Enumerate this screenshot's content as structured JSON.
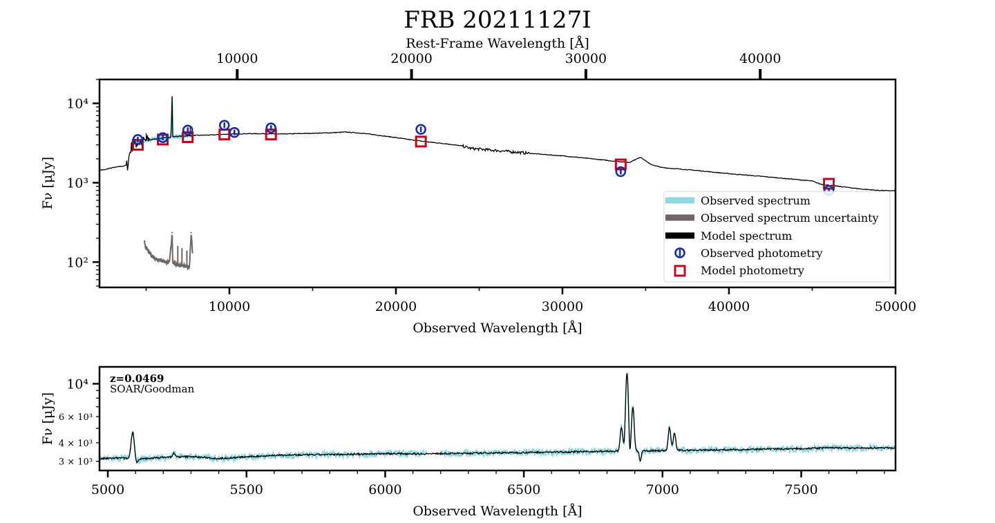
{
  "title": "FRB 20211127I",
  "colors": {
    "observed_spectrum": "#8dd8e0",
    "uncertainty": "#6e6664",
    "model": "#000000",
    "observed_phot": "#1a2ea0",
    "model_phot": "#c4001a"
  },
  "chart_data": [
    {
      "type": "line",
      "panel": "sed",
      "title": "FRB 20211127I",
      "xlabel": "Observed Wavelength [Å]",
      "ylabel": "Fν [μJy]",
      "top_xlabel": "Rest-Frame Wavelength [Å]",
      "xlim": [
        2200,
        50000
      ],
      "ylim": [
        48,
        20000
      ],
      "yscale": "log",
      "xticks": [
        10000,
        20000,
        30000,
        40000,
        50000
      ],
      "xtick_labels": [
        "10000",
        "20000",
        "30000",
        "40000",
        "50000"
      ],
      "top_xticks": [
        10000,
        20000,
        30000,
        40000
      ],
      "top_xtick_labels": [
        "10000",
        "20000",
        "30000",
        "40000"
      ],
      "yticks": [
        100,
        1000,
        10000
      ],
      "ytick_labels": [
        "10²",
        "10³",
        "10⁴"
      ],
      "legend": {
        "location": "lower-right",
        "entries": [
          "Observed spectrum",
          "Observed spectrum uncertainty",
          "Model spectrum",
          "Observed photometry",
          "Model photometry"
        ]
      },
      "model_spectrum": [
        [
          2200,
          1450
        ],
        [
          2500,
          1450
        ],
        [
          2800,
          1520
        ],
        [
          3100,
          1560
        ],
        [
          3400,
          1600
        ],
        [
          3700,
          1630
        ],
        [
          3900,
          1700
        ],
        [
          4000,
          2300
        ],
        [
          4100,
          2800
        ],
        [
          4200,
          3000
        ],
        [
          4300,
          3100
        ],
        [
          4500,
          3200
        ],
        [
          4700,
          3300
        ],
        [
          5000,
          3400
        ],
        [
          5500,
          3550
        ],
        [
          6000,
          3650
        ],
        [
          6500,
          3750
        ],
        [
          6563,
          13000
        ],
        [
          6600,
          3800
        ],
        [
          7000,
          3850
        ],
        [
          7500,
          3900
        ],
        [
          8000,
          3950
        ],
        [
          9000,
          4000
        ],
        [
          10000,
          4100
        ],
        [
          11000,
          4150
        ],
        [
          12000,
          4150
        ],
        [
          13000,
          4100
        ],
        [
          14000,
          4150
        ],
        [
          15000,
          4200
        ],
        [
          16000,
          4250
        ],
        [
          17000,
          4350
        ],
        [
          18000,
          4200
        ],
        [
          19000,
          3950
        ],
        [
          20000,
          3700
        ],
        [
          21000,
          3450
        ],
        [
          22000,
          3250
        ],
        [
          23000,
          3100
        ],
        [
          24000,
          2900
        ],
        [
          24500,
          2700
        ],
        [
          25000,
          2650
        ],
        [
          26000,
          2550
        ],
        [
          27000,
          2450
        ],
        [
          28000,
          2350
        ],
        [
          29000,
          2260
        ],
        [
          30000,
          2180
        ],
        [
          31000,
          2080
        ],
        [
          32000,
          1980
        ],
        [
          33000,
          1880
        ],
        [
          34000,
          1800
        ],
        [
          34700,
          2100
        ],
        [
          35300,
          1700
        ],
        [
          36000,
          1550
        ],
        [
          38000,
          1430
        ],
        [
          40000,
          1300
        ],
        [
          42000,
          1200
        ],
        [
          44000,
          1100
        ],
        [
          45000,
          1050
        ],
        [
          45500,
          960
        ],
        [
          46000,
          930
        ],
        [
          47000,
          880
        ],
        [
          48000,
          830
        ],
        [
          49000,
          800
        ],
        [
          50000,
          790
        ]
      ],
      "observed_spectrum_x_range": [
        4200,
        7800
      ],
      "uncertainty_spectrum": [
        [
          4900,
          180
        ],
        [
          5000,
          150
        ],
        [
          5200,
          130
        ],
        [
          5400,
          118
        ],
        [
          5600,
          110
        ],
        [
          5800,
          108
        ],
        [
          6000,
          104
        ],
        [
          6200,
          100
        ],
        [
          6400,
          98
        ],
        [
          6563,
          230
        ],
        [
          6600,
          100
        ],
        [
          6800,
          94
        ],
        [
          7000,
          92
        ],
        [
          7200,
          90
        ],
        [
          7400,
          88
        ],
        [
          7600,
          86
        ],
        [
          7700,
          230
        ],
        [
          7800,
          120
        ]
      ],
      "observed_photometry": [
        {
          "x": 4500,
          "y": 3500
        },
        {
          "x": 6000,
          "y": 3700
        },
        {
          "x": 7500,
          "y": 4600
        },
        {
          "x": 9700,
          "y": 5300
        },
        {
          "x": 10300,
          "y": 4300
        },
        {
          "x": 12500,
          "y": 4900
        },
        {
          "x": 21500,
          "y": 4700
        },
        {
          "x": 33500,
          "y": 1380
        },
        {
          "x": 46000,
          "y": 800
        }
      ],
      "model_photometry": [
        {
          "x": 4500,
          "y": 3000
        },
        {
          "x": 6000,
          "y": 3500
        },
        {
          "x": 7500,
          "y": 3750
        },
        {
          "x": 9700,
          "y": 4050
        },
        {
          "x": 12500,
          "y": 4050
        },
        {
          "x": 21500,
          "y": 3300
        },
        {
          "x": 33500,
          "y": 1700
        },
        {
          "x": 46000,
          "y": 970
        }
      ]
    },
    {
      "type": "line",
      "panel": "spectrum",
      "xlabel": "Observed Wavelength [Å]",
      "ylabel": "Fν [μJy]",
      "xlim": [
        4970,
        7840
      ],
      "ylim": [
        2600,
        13000
      ],
      "yscale": "log",
      "xticks": [
        5000,
        5500,
        6000,
        6500,
        7000,
        7500
      ],
      "xtick_labels": [
        "5000",
        "5500",
        "6000",
        "6500",
        "7000",
        "7500"
      ],
      "yticks": [
        3000,
        4000,
        6000,
        10000
      ],
      "ytick_labels": [
        "3 × 10³",
        "4 × 10³",
        "6 × 10³",
        "10⁴"
      ],
      "annotation_redshift": "z=0.0469",
      "annotation_instrument": "SOAR/Goodman",
      "gap_x_range": [
        6150,
        6200
      ],
      "continuum": [
        [
          4970,
          3120
        ],
        [
          5050,
          3160
        ],
        [
          5100,
          3090
        ],
        [
          5200,
          3190
        ],
        [
          5300,
          3230
        ],
        [
          5400,
          3130
        ],
        [
          5500,
          3210
        ],
        [
          5600,
          3290
        ],
        [
          5700,
          3310
        ],
        [
          5800,
          3330
        ],
        [
          5900,
          3350
        ],
        [
          6000,
          3380
        ],
        [
          6150,
          3370
        ],
        [
          6200,
          3380
        ],
        [
          6300,
          3400
        ],
        [
          6400,
          3420
        ],
        [
          6500,
          3440
        ],
        [
          6600,
          3460
        ],
        [
          6700,
          3480
        ],
        [
          6800,
          3500
        ],
        [
          6900,
          3520
        ],
        [
          7000,
          3540
        ],
        [
          7100,
          3560
        ],
        [
          7200,
          3580
        ],
        [
          7300,
          3600
        ],
        [
          7400,
          3630
        ],
        [
          7500,
          3650
        ],
        [
          7600,
          3700
        ],
        [
          7700,
          3680
        ],
        [
          7840,
          3700
        ]
      ],
      "emission_lines": [
        {
          "x": 5090,
          "y": 4800,
          "w": 8
        },
        {
          "x": 5238,
          "y": 3400,
          "w": 6
        },
        {
          "x": 6852,
          "y": 5100,
          "w": 6
        },
        {
          "x": 6872,
          "y": 11800,
          "w": 6
        },
        {
          "x": 6893,
          "y": 7000,
          "w": 6
        },
        {
          "x": 7025,
          "y": 5100,
          "w": 6
        },
        {
          "x": 7043,
          "y": 4700,
          "w": 6
        }
      ],
      "absorption_lines": [
        {
          "x": 5100,
          "y": 2850,
          "w": 10
        },
        {
          "x": 6880,
          "y": 2950,
          "w": 5
        },
        {
          "x": 6920,
          "y": 3000,
          "w": 5
        }
      ]
    }
  ]
}
